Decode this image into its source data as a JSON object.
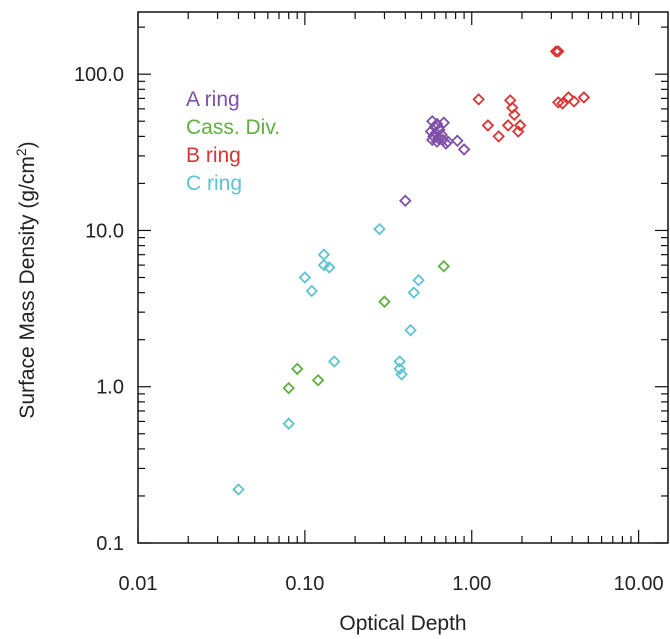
{
  "chart_data": {
    "type": "scatter",
    "title": "",
    "xlabel": "Optical Depth",
    "ylabel": "Surface Mass Density (g/cm",
    "ylabel_superscript": "2",
    "ylabel_suffix": ")",
    "xscale": "log",
    "yscale": "log",
    "xlim": [
      0.01,
      15
    ],
    "ylim": [
      0.1,
      250
    ],
    "xticks": [
      0.01,
      0.1,
      1,
      10
    ],
    "xtick_labels": [
      "0.01",
      "0.10",
      "1.00",
      "10.00"
    ],
    "yticks": [
      0.1,
      1,
      10,
      100
    ],
    "ytick_labels": [
      "0.1",
      "1.0",
      "10.0",
      "100.0"
    ],
    "marker": "diamond-open",
    "grid": false,
    "legend_position": "top-left",
    "series": [
      {
        "name": "A ring",
        "color": "#7f4fa8",
        "points": [
          [
            0.58,
            50
          ],
          [
            0.62,
            48
          ],
          [
            0.68,
            49
          ],
          [
            0.6,
            46
          ],
          [
            0.64,
            44
          ],
          [
            0.57,
            43
          ],
          [
            0.61,
            42
          ],
          [
            0.66,
            41
          ],
          [
            0.59,
            40
          ],
          [
            0.63,
            39
          ],
          [
            0.67,
            38
          ],
          [
            0.72,
            37
          ],
          [
            0.7,
            36
          ],
          [
            0.82,
            37.5
          ],
          [
            0.9,
            33
          ],
          [
            0.58,
            38
          ],
          [
            0.62,
            37
          ],
          [
            0.4,
            15.5
          ]
        ]
      },
      {
        "name": "Cass. Div.",
        "color": "#5fb040",
        "points": [
          [
            0.68,
            5.9
          ],
          [
            0.3,
            3.5
          ],
          [
            0.09,
            1.3
          ],
          [
            0.08,
            0.98
          ],
          [
            0.12,
            1.1
          ]
        ]
      },
      {
        "name": "B ring",
        "color": "#d93535",
        "points": [
          [
            3.2,
            140
          ],
          [
            3.3,
            140
          ],
          [
            1.1,
            69
          ],
          [
            1.7,
            68
          ],
          [
            1.75,
            61
          ],
          [
            1.8,
            55
          ],
          [
            1.25,
            47
          ],
          [
            1.65,
            47
          ],
          [
            1.95,
            47
          ],
          [
            1.9,
            43
          ],
          [
            1.45,
            40
          ],
          [
            3.8,
            71
          ],
          [
            4.7,
            71
          ],
          [
            3.3,
            66
          ],
          [
            3.5,
            65
          ],
          [
            4.1,
            67
          ]
        ]
      },
      {
        "name": "C ring",
        "color": "#5ec4d2",
        "points": [
          [
            0.28,
            10.2
          ],
          [
            0.13,
            7.0
          ],
          [
            0.13,
            6.0
          ],
          [
            0.14,
            5.8
          ],
          [
            0.1,
            5.0
          ],
          [
            0.11,
            4.1
          ],
          [
            0.48,
            4.8
          ],
          [
            0.45,
            4.0
          ],
          [
            0.43,
            2.3
          ],
          [
            0.15,
            1.45
          ],
          [
            0.37,
            1.45
          ],
          [
            0.37,
            1.3
          ],
          [
            0.38,
            1.2
          ],
          [
            0.08,
            0.58
          ],
          [
            0.04,
            0.22
          ]
        ]
      }
    ]
  }
}
